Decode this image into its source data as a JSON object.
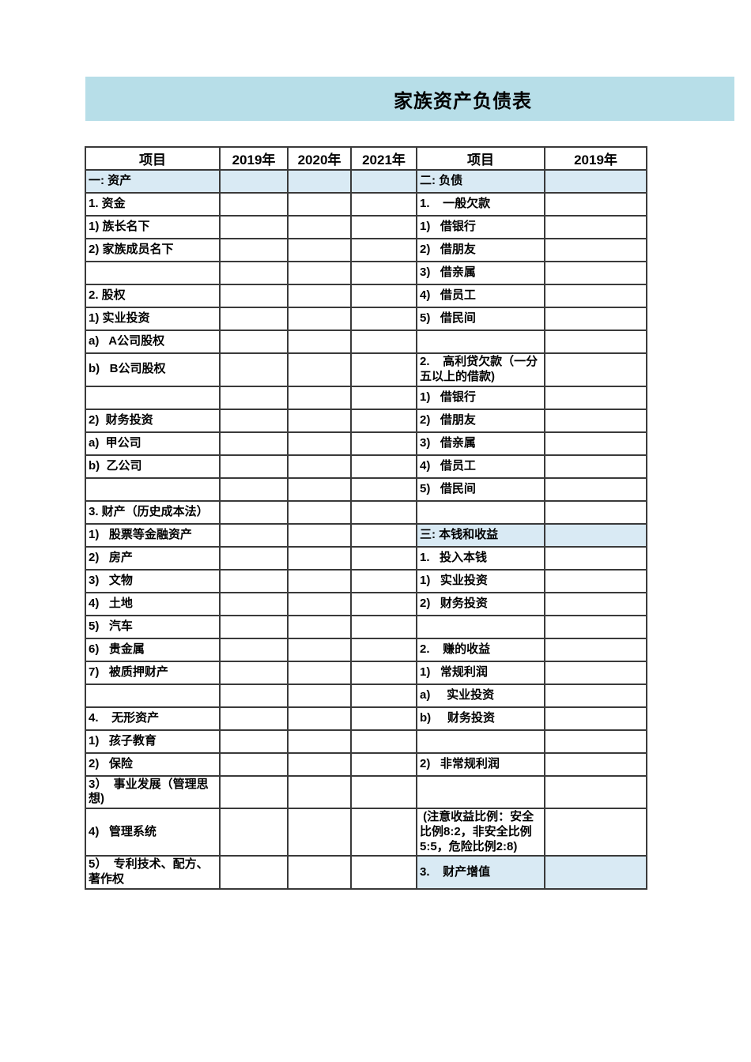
{
  "page": {
    "title": "家族资产负债表"
  },
  "colors": {
    "banner_bg": "#b7dee8",
    "highlight_bg": "#d9eaf4",
    "grid_line": "#3a3a3a",
    "text": "#000000",
    "page_bg": "#ffffff"
  },
  "table": {
    "headers": [
      "项目",
      "2019年",
      "2020年",
      "2021年",
      "项目",
      "2019年"
    ],
    "rows": [
      {
        "left": "一: 资产",
        "right": "二: 负债",
        "left_blue": true,
        "right_blue": true
      },
      {
        "left": "1. 资金",
        "right": "1.    一般欠款",
        "left_blue": false,
        "right_blue": false
      },
      {
        "left": "1) 族长名下",
        "right": "1)   借银行",
        "left_blue": false,
        "right_blue": false
      },
      {
        "left": "2) 家族成员名下",
        "right": "2)   借朋友",
        "left_blue": false,
        "right_blue": false
      },
      {
        "left": "",
        "right": "3)   借亲属",
        "left_blue": false,
        "right_blue": false
      },
      {
        "left": "2. 股权",
        "right": "4)   借员工",
        "left_blue": false,
        "right_blue": false
      },
      {
        "left": "1) 实业投资",
        "right": "5)   借民间",
        "left_blue": false,
        "right_blue": false
      },
      {
        "left": "a)   A公司股权",
        "right": "",
        "left_blue": false,
        "right_blue": false
      },
      {
        "left": "b)   B公司股权",
        "right": "2.    高利贷欠款（一分五以上的借款)",
        "left_blue": false,
        "right_blue": false
      },
      {
        "left": "",
        "right": "1)   借银行",
        "left_blue": false,
        "right_blue": false
      },
      {
        "left": "2)  财务投资",
        "right": "2)   借朋友",
        "left_blue": false,
        "right_blue": false
      },
      {
        "left": "a)  甲公司",
        "right": "3)   借亲属",
        "left_blue": false,
        "right_blue": false
      },
      {
        "left": "b)  乙公司",
        "right": "4)   借员工",
        "left_blue": false,
        "right_blue": false
      },
      {
        "left": "",
        "right": "5)   借民间",
        "left_blue": false,
        "right_blue": false
      },
      {
        "left": "3. 财产（历史成本法）",
        "right": "",
        "left_blue": false,
        "right_blue": false
      },
      {
        "left": "1)   股票等金融资产",
        "right": "三: 本钱和收益",
        "left_blue": false,
        "right_blue": true
      },
      {
        "left": "2)   房产",
        "right": "1.   投入本钱",
        "left_blue": false,
        "right_blue": false
      },
      {
        "left": "3)   文物",
        "right": "1)   实业投资",
        "left_blue": false,
        "right_blue": false
      },
      {
        "left": "4)   土地",
        "right": "2)   财务投资",
        "left_blue": false,
        "right_blue": false
      },
      {
        "left": "5)   汽车",
        "right": "",
        "left_blue": false,
        "right_blue": false
      },
      {
        "left": "6)   贵金属",
        "right": "2.    赚的收益",
        "left_blue": false,
        "right_blue": false
      },
      {
        "left": "7)   被质押财产",
        "right": "1)   常规利润",
        "left_blue": false,
        "right_blue": false
      },
      {
        "left": "",
        "right": "a)     实业投资",
        "left_blue": false,
        "right_blue": false
      },
      {
        "left": "4.    无形资产",
        "right": "b)     财务投资",
        "left_blue": false,
        "right_blue": false
      },
      {
        "left": "1)   孩子教育",
        "right": "",
        "left_blue": false,
        "right_blue": false
      },
      {
        "left": "2)   保险",
        "right": "2)   非常规利润",
        "left_blue": false,
        "right_blue": false
      },
      {
        "left": "3）  事业发展（管理思想)",
        "right": "",
        "left_blue": false,
        "right_blue": false
      },
      {
        "left": "4)   管理系统",
        "right": " (注意收益比例：安全比例8:2，非安全比例5:5，危险比例2:8)",
        "left_blue": false,
        "right_blue": false
      },
      {
        "left": "5）  专利技术、配方、著作权",
        "right": "3.    财产增值",
        "left_blue": false,
        "right_blue": true
      }
    ]
  }
}
